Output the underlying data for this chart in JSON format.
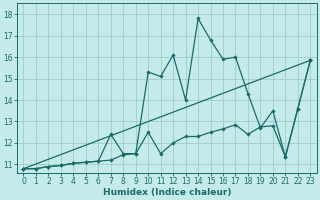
{
  "xlabel": "Humidex (Indice chaleur)",
  "bg_color": "#c5eaea",
  "grid_color": "#a0cccc",
  "line_color": "#1a6b6b",
  "xlim": [
    -0.5,
    23.5
  ],
  "ylim": [
    10.6,
    18.5
  ],
  "xticks": [
    0,
    1,
    2,
    3,
    4,
    5,
    6,
    7,
    8,
    9,
    10,
    11,
    12,
    13,
    14,
    15,
    16,
    17,
    18,
    19,
    20,
    21,
    22,
    23
  ],
  "yticks": [
    11,
    12,
    13,
    14,
    15,
    16,
    17,
    18
  ],
  "series1_x": [
    0,
    1,
    2,
    3,
    4,
    5,
    6,
    7,
    8,
    9,
    10,
    11,
    12,
    13,
    14,
    15,
    16,
    17,
    18,
    19,
    20,
    21,
    22,
    23
  ],
  "series1_y": [
    10.8,
    10.8,
    10.9,
    10.95,
    11.05,
    11.1,
    11.15,
    12.4,
    11.5,
    11.5,
    15.3,
    15.1,
    16.1,
    14.0,
    17.8,
    16.8,
    15.9,
    16.0,
    14.3,
    12.7,
    13.5,
    11.35,
    13.6,
    15.85
  ],
  "series2_x": [
    0,
    1,
    2,
    3,
    4,
    5,
    6,
    7,
    8,
    9,
    10,
    11,
    12,
    13,
    14,
    15,
    16,
    17,
    18,
    19,
    20,
    21,
    22,
    23
  ],
  "series2_y": [
    10.8,
    10.8,
    10.9,
    10.95,
    11.05,
    11.1,
    11.15,
    11.2,
    11.45,
    11.5,
    12.5,
    11.5,
    12.0,
    12.3,
    12.3,
    12.5,
    12.65,
    12.85,
    12.4,
    12.75,
    12.8,
    11.35,
    13.6,
    15.85
  ],
  "series3_x": [
    0,
    23
  ],
  "series3_y": [
    10.8,
    15.85
  ],
  "tick_fontsize": 5.5,
  "xlabel_fontsize": 6.5
}
